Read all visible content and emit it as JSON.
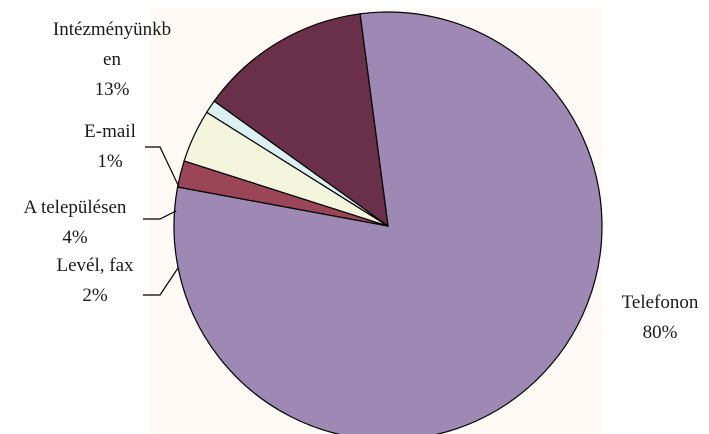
{
  "chart_data": {
    "type": "pie",
    "title": "",
    "start_angle_deg": 0,
    "direction": "clockwise",
    "legend": "none",
    "slices": [
      {
        "label": "Telefonon",
        "label_lines": [
          "Telefonon"
        ],
        "value": 80,
        "value_label": "80%",
        "color": "#9e88b4"
      },
      {
        "label": "Levél, fax",
        "label_lines": [
          "Levél, fax"
        ],
        "value": 2,
        "value_label": "2%",
        "color": "#9b4658"
      },
      {
        "label": "A településen",
        "label_lines": [
          "A településen"
        ],
        "value": 4,
        "value_label": "4%",
        "color": "#f3f5dc"
      },
      {
        "label": "E-mail",
        "label_lines": [
          "E-mail"
        ],
        "value": 1,
        "value_label": "1%",
        "color": "#dcf0f2"
      },
      {
        "label": "Intézményünkben",
        "label_lines": [
          "Intézményünkb",
          "en"
        ],
        "value": 13,
        "value_label": "13%",
        "color": "#6b3049"
      }
    ]
  }
}
